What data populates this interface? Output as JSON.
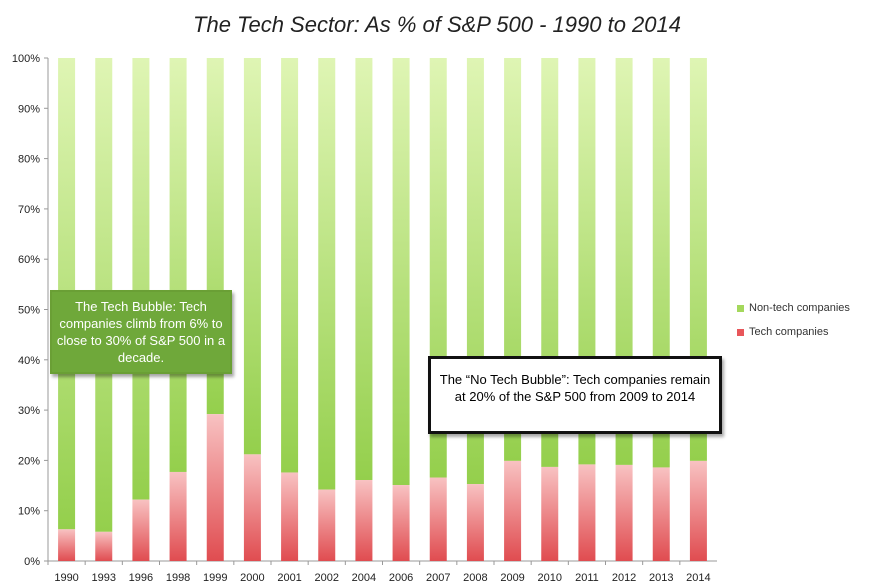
{
  "chart_data": {
    "type": "bar",
    "stacked": true,
    "title": "The Tech Sector: As % of S&P 500 - 1990 to 2014",
    "categories": [
      "1990",
      "1993",
      "1996",
      "1998",
      "1999",
      "2000",
      "2001",
      "2002",
      "2004",
      "2006",
      "2007",
      "2008",
      "2009",
      "2010",
      "2011",
      "2012",
      "2013",
      "2014"
    ],
    "series": [
      {
        "name": "Tech companies",
        "color": "#e8565a",
        "values": [
          6.3,
          5.8,
          12.2,
          17.7,
          29.2,
          21.2,
          17.6,
          14.2,
          16.1,
          15.1,
          16.6,
          15.3,
          19.9,
          18.7,
          19.2,
          19.1,
          18.6,
          19.9
        ]
      },
      {
        "name": "Non-tech companies",
        "color": "#a4d85c",
        "values": [
          93.7,
          94.2,
          87.8,
          82.3,
          70.8,
          78.8,
          82.4,
          85.8,
          83.9,
          84.9,
          83.4,
          84.7,
          80.1,
          81.3,
          80.8,
          80.9,
          81.4,
          80.1
        ]
      }
    ],
    "ylim": [
      0,
      100
    ],
    "yticks": [
      "0%",
      "10%",
      "20%",
      "30%",
      "40%",
      "50%",
      "60%",
      "70%",
      "80%",
      "90%",
      "100%"
    ],
    "legend_position": "right",
    "grid": false
  },
  "legend": {
    "items": [
      {
        "label": "Non-tech companies",
        "color": "#a4d85c"
      },
      {
        "label": "Tech companies",
        "color": "#e8565a"
      }
    ]
  },
  "annotations": {
    "tech_bubble": "The Tech Bubble: Tech companies climb from 6% to close to 30% of S&P 500 in a decade.",
    "no_tech_bubble": "The “No Tech Bubble”: Tech companies remain at 20% of the S&P 500 from 2009 to 2014"
  }
}
